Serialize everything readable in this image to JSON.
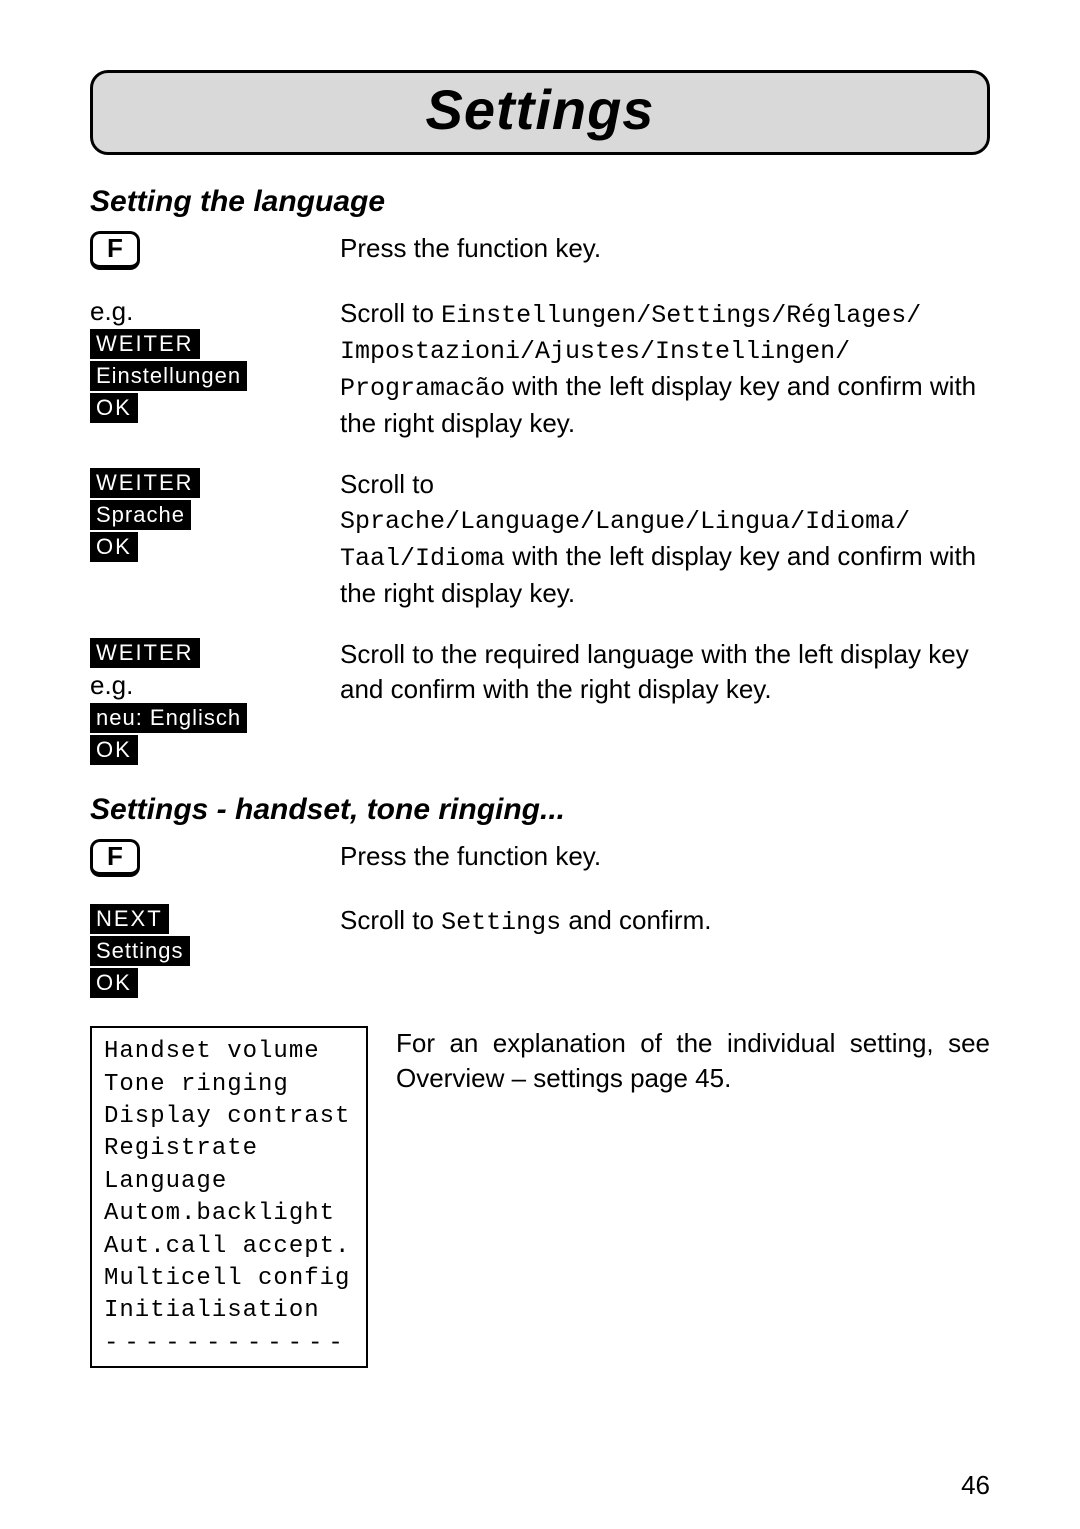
{
  "title": "Settings",
  "page_number": "46",
  "section1": {
    "heading": "Setting the language",
    "step1": {
      "key_label": "F",
      "instruction": "Press the function key."
    },
    "step2": {
      "left_prefix": "e.g.",
      "btn_weiter": "WEITER",
      "btn_einst": "Einstellungen",
      "btn_ok": "OK",
      "right_before1": "Scroll to ",
      "lcd1": "Einstellungen/Settings/Réglages/",
      "lcd2": "Impostazioni/Ajustes/Instellingen/",
      "lcd3": "Programacão",
      "right_after": " with the left display key and confirm with the right display key."
    },
    "step3": {
      "btn_weiter": "WEITER",
      "btn_sprache": "Sprache",
      "btn_ok": "OK",
      "right_before": "Scroll to ",
      "lcd1": "Sprache/Language/Langue/Lingua/Idioma/",
      "lcd2": "Taal/Idioma",
      "right_after": " with the left display key and confirm with the right display key."
    },
    "step4": {
      "btn_weiter": "WEITER",
      "left_prefix": "e.g.",
      "btn_neu": "neu: Englisch",
      "btn_ok": "OK",
      "text": "Scroll to the required language with the left display key and confirm with the right display key."
    }
  },
  "section2": {
    "heading": "Settings - handset, tone ringing...",
    "step1": {
      "key_label": "F",
      "instruction": "Press the function key."
    },
    "step2": {
      "btn_next": "NEXT",
      "btn_settings": "Settings",
      "btn_ok": "OK",
      "right_before": "Scroll to ",
      "lcd": "Settings",
      "right_after": " and confirm."
    },
    "menu": {
      "items": [
        "Handset volume",
        "Tone ringing",
        "Display contrast",
        "Registrate",
        "Language",
        "Autom.backlight",
        "Aut.call accept.",
        "Multicell config",
        "Initialisation"
      ],
      "dashes": "------------"
    },
    "explain": "For an explanation of the individual setting, see Overview – settings page 45."
  }
}
